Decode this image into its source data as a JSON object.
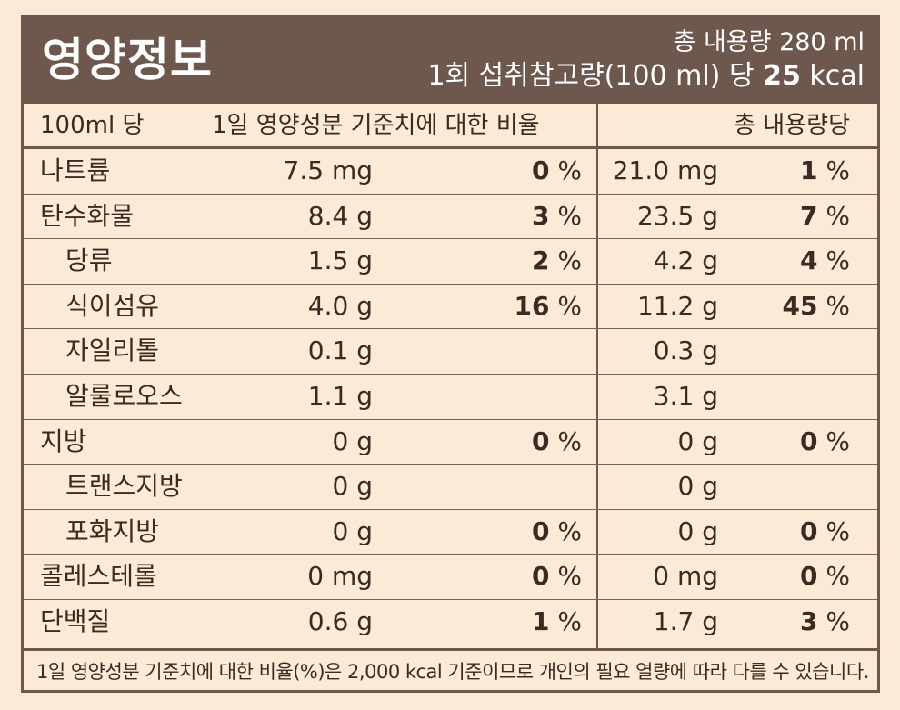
{
  "header": {
    "title": "영양정보",
    "total_label": "총 내용량 280 ml",
    "serving_prefix": "1회 섭취참고량(100 ml) 당 ",
    "serving_kcal": "25",
    "serving_unit": " kcal"
  },
  "columns": {
    "per": "100ml 당",
    "daily": "1일 영양성분 기준치에 대한 비율",
    "total": "총 내용량당"
  },
  "rows": [
    {
      "name": "나트륨",
      "indent": false,
      "v1": "7.5 mg",
      "p1": "0",
      "v2": "21.0 mg",
      "p2": "1"
    },
    {
      "name": "탄수화물",
      "indent": false,
      "v1": "8.4 g",
      "p1": "3",
      "v2": "23.5 g",
      "p2": "7"
    },
    {
      "name": "당류",
      "indent": true,
      "v1": "1.5 g",
      "p1": "2",
      "v2": "4.2 g",
      "p2": "4"
    },
    {
      "name": "식이섬유",
      "indent": true,
      "v1": "4.0 g",
      "p1": "16",
      "v2": "11.2 g",
      "p2": "45"
    },
    {
      "name": "자일리톨",
      "indent": true,
      "v1": "0.1 g",
      "p1": "",
      "v2": "0.3 g",
      "p2": ""
    },
    {
      "name": "알룰로오스",
      "indent": true,
      "v1": "1.1 g",
      "p1": "",
      "v2": "3.1 g",
      "p2": ""
    },
    {
      "name": "지방",
      "indent": false,
      "v1": "0 g",
      "p1": "0",
      "v2": "0 g",
      "p2": "0"
    },
    {
      "name": "트랜스지방",
      "indent": true,
      "v1": "0 g",
      "p1": "",
      "v2": "0 g",
      "p2": ""
    },
    {
      "name": "포화지방",
      "indent": true,
      "v1": "0 g",
      "p1": "0",
      "v2": "0 g",
      "p2": "0"
    },
    {
      "name": "콜레스테롤",
      "indent": false,
      "v1": "0 mg",
      "p1": "0",
      "v2": "0 mg",
      "p2": "0"
    },
    {
      "name": "단백질",
      "indent": false,
      "v1": "0.6 g",
      "p1": "1",
      "v2": "1.7 g",
      "p2": "3"
    }
  ],
  "percent_sign": " %",
  "footer": "1일 영양성분 기준치에 대한 비율(%)은 2,000 kcal 기준이므로 개인의 필요 열량에 따라 다를 수 있습니다."
}
